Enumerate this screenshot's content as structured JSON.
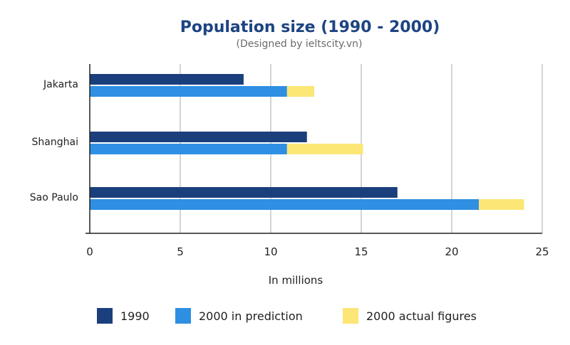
{
  "chart_data": {
    "type": "bar",
    "orientation": "horizontal",
    "stacked_segment": "2000 actual figures stacked after 2000 in prediction",
    "title": "Population size (1990 - 2000)",
    "subtitle": "(Designed by ieltscity.vn)",
    "xlabel": "In millions",
    "ylabel": "",
    "xlim": [
      0,
      25
    ],
    "xticks": [
      0,
      5,
      10,
      15,
      20,
      25
    ],
    "grid": "vertical",
    "legend_position": "bottom",
    "categories": [
      "Jakarta",
      "Shanghai",
      "Sao Paulo"
    ],
    "series": [
      {
        "name": "1990",
        "color": "#1b3f7c",
        "values": [
          8.5,
          12,
          17
        ]
      },
      {
        "name": "2000 in prediction",
        "color": "#2e8fe3",
        "values": [
          10.9,
          10.9,
          21.5
        ]
      },
      {
        "name": "2000 actual figures",
        "color": "#fbe676",
        "values": [
          12.4,
          15.1,
          24
        ]
      }
    ]
  }
}
